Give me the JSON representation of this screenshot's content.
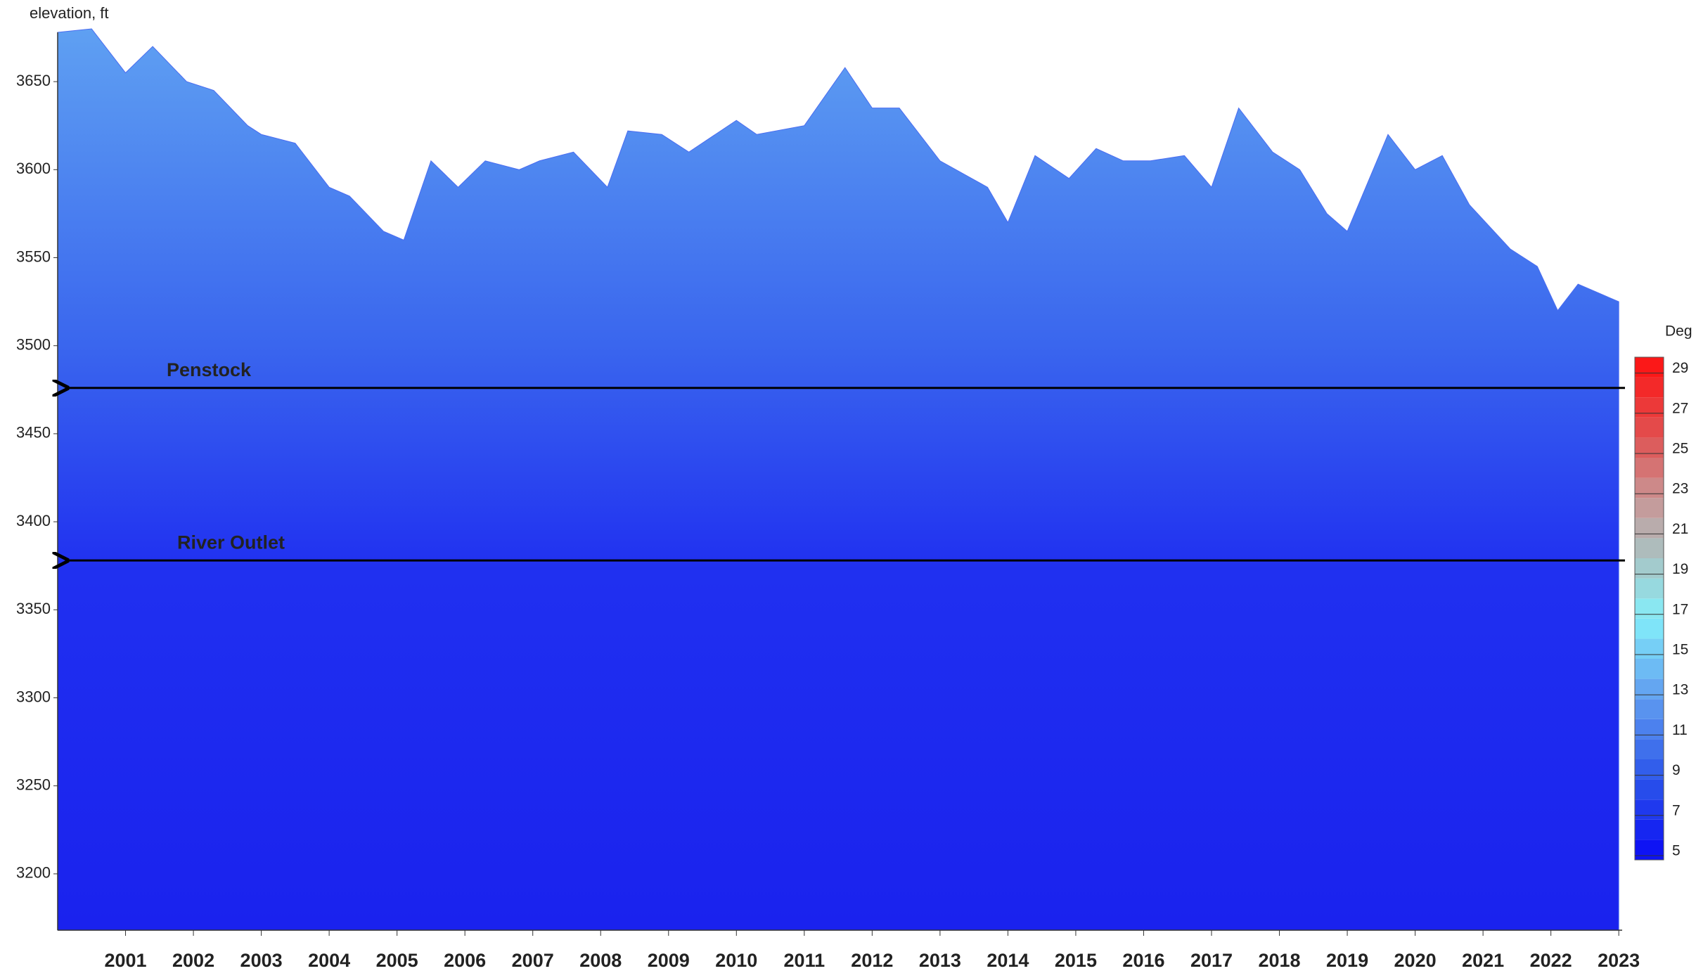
{
  "chart_data": {
    "type": "contour",
    "ylabel": "elevation, ft",
    "colorbar_label": "Deg C",
    "x": [
      2000.0,
      2000.5,
      2001.0,
      2001.4,
      2001.9,
      2002.3,
      2002.8,
      2003.0,
      2003.5,
      2004.0,
      2004.3,
      2004.8,
      2005.1,
      2005.5,
      2005.9,
      2006.3,
      2006.8,
      2007.1,
      2007.6,
      2008.1,
      2008.4,
      2008.9,
      2009.3,
      2010.0,
      2010.3,
      2011.0,
      2011.6,
      2012.0,
      2012.4,
      2013.0,
      2013.7,
      2014.0,
      2014.4,
      2014.9,
      2015.3,
      2015.7,
      2016.1,
      2016.6,
      2017.0,
      2017.4,
      2017.9,
      2018.3,
      2018.7,
      2019.0,
      2019.6,
      2020.0,
      2020.4,
      2020.8,
      2021.4,
      2021.8,
      2022.1,
      2022.4,
      2022.7,
      2023.0
    ],
    "values": [
      3678,
      3680,
      3655,
      3670,
      3650,
      3645,
      3625,
      3620,
      3615,
      3590,
      3585,
      3565,
      3560,
      3605,
      3590,
      3605,
      3600,
      3605,
      3610,
      3590,
      3622,
      3620,
      3610,
      3628,
      3620,
      3625,
      3658,
      3635,
      3635,
      3605,
      3590,
      3570,
      3608,
      3595,
      3612,
      3605,
      3605,
      3608,
      3590,
      3635,
      3610,
      3600,
      3575,
      3565,
      3620,
      3600,
      3608,
      3580,
      3555,
      3545,
      3520,
      3535,
      3530,
      3525
    ],
    "xlim": [
      2000,
      2023.05
    ],
    "xticks": [
      2001,
      2002,
      2003,
      2004,
      2005,
      2006,
      2007,
      2008,
      2009,
      2010,
      2011,
      2012,
      2013,
      2014,
      2015,
      2016,
      2017,
      2018,
      2019,
      2020,
      2021,
      2022,
      2023
    ],
    "ylim": [
      3168,
      3678
    ],
    "yticks": [
      3200,
      3250,
      3300,
      3350,
      3400,
      3450,
      3500,
      3550,
      3600,
      3650
    ],
    "clim": [
      5,
      30
    ],
    "cticks": [
      5,
      7,
      9,
      11,
      13,
      15,
      17,
      19,
      21,
      23,
      25,
      27,
      29
    ],
    "colorscale": [
      [
        5,
        "#0a0af5"
      ],
      [
        9,
        "#2b55ea"
      ],
      [
        13,
        "#5f9cf0"
      ],
      [
        17,
        "#84eefa"
      ],
      [
        20,
        "#a9c4c4"
      ],
      [
        23,
        "#c99494"
      ],
      [
        26,
        "#e05252"
      ],
      [
        30,
        "#ff1010"
      ]
    ],
    "annotations": [
      {
        "text": "Penstock",
        "y": 3476
      },
      {
        "text": "River Outlet",
        "y": 3378
      }
    ]
  }
}
